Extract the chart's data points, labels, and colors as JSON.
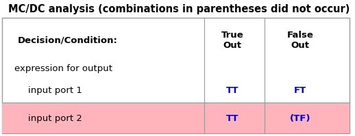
{
  "title": "MC/DC analysis (combinations in parentheses did not occur)",
  "title_color": "#000000",
  "title_fontsize": 10.5,
  "title_bold": true,
  "col_headers": [
    "True\nOut",
    "False\nOut"
  ],
  "col_header_fontsize": 9.5,
  "col_header_bold": true,
  "row_label_header": "Decision/Condition:",
  "row_label_header_fontsize": 9.5,
  "group_label": "expression for output",
  "group_label_fontsize": 9.5,
  "rows": [
    {
      "label": "input port 1",
      "true_val": "TT",
      "false_val": "FT",
      "true_color": "#0000cc",
      "false_color": "#0000cc",
      "bg_color": null,
      "fontsize": 9.5
    },
    {
      "label": "input port 2",
      "true_val": "TT",
      "false_val": "(TF)",
      "true_color": "#0000cc",
      "false_color": "#0000cc",
      "bg_color": "#ffb3ba",
      "fontsize": 9.5
    }
  ],
  "table_border_color": "#999999",
  "background_color": "#ffffff",
  "row_highlight_color": "#ffb3ba",
  "fig_width": 5.18,
  "fig_height": 1.99
}
